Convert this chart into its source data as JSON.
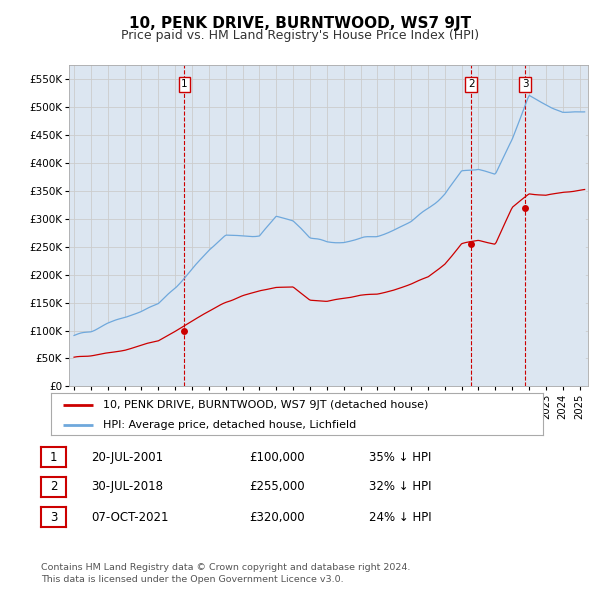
{
  "title": "10, PENK DRIVE, BURNTWOOD, WS7 9JT",
  "subtitle": "Price paid vs. HM Land Registry's House Price Index (HPI)",
  "title_fontsize": 11,
  "subtitle_fontsize": 9,
  "hpi_color": "#6fa8dc",
  "hpi_fill_color": "#dce6f1",
  "price_color": "#cc0000",
  "background_color": "#ffffff",
  "grid_color": "#cccccc",
  "ylim": [
    0,
    575000
  ],
  "yticks": [
    0,
    50000,
    100000,
    150000,
    200000,
    250000,
    300000,
    350000,
    400000,
    450000,
    500000,
    550000
  ],
  "transactions": [
    {
      "date": "20-JUL-2001",
      "price": 100000,
      "label": "1",
      "x_year": 2001.55
    },
    {
      "date": "30-JUL-2018",
      "price": 255000,
      "label": "2",
      "x_year": 2018.58
    },
    {
      "date": "07-OCT-2021",
      "price": 320000,
      "label": "3",
      "x_year": 2021.77
    }
  ],
  "legend_entries": [
    "10, PENK DRIVE, BURNTWOOD, WS7 9JT (detached house)",
    "HPI: Average price, detached house, Lichfield"
  ],
  "table_rows": [
    [
      "1",
      "20-JUL-2001",
      "£100,000",
      "35% ↓ HPI"
    ],
    [
      "2",
      "30-JUL-2018",
      "£255,000",
      "32% ↓ HPI"
    ],
    [
      "3",
      "07-OCT-2021",
      "£320,000",
      "24% ↓ HPI"
    ]
  ],
  "footnote": "Contains HM Land Registry data © Crown copyright and database right 2024.\nThis data is licensed under the Open Government Licence v3.0.",
  "xmin": 1994.7,
  "xmax": 2025.5
}
